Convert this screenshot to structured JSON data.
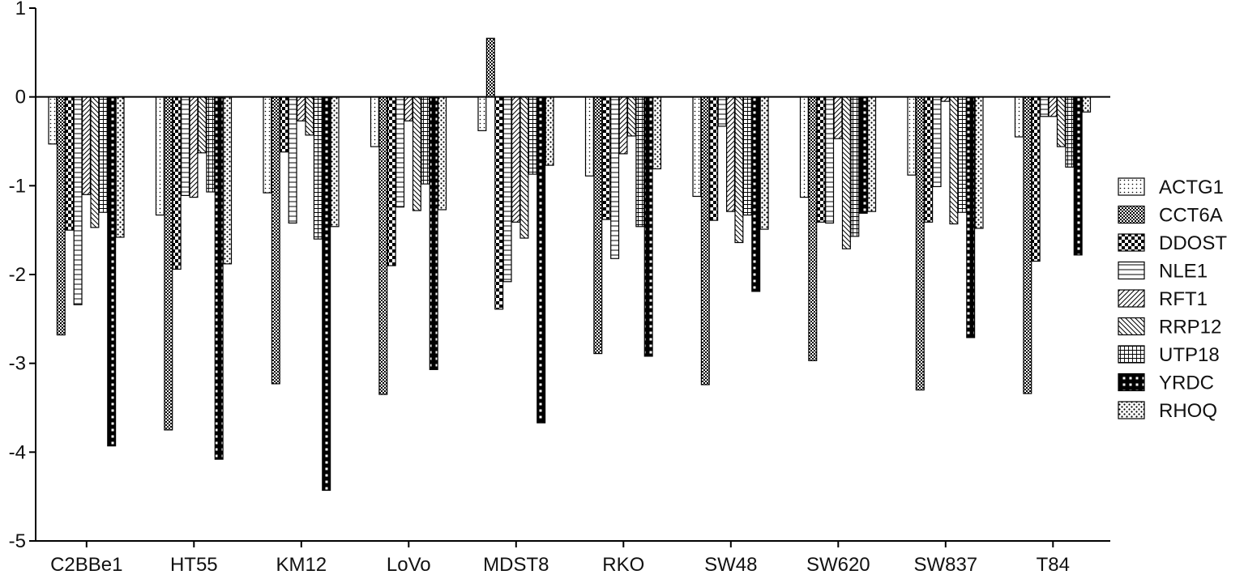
{
  "chart_data": {
    "type": "bar",
    "categories": [
      "C2BBe1",
      "HT55",
      "KM12",
      "LoVo",
      "MDST8",
      "RKO",
      "SW48",
      "SW620",
      "SW837",
      "T84"
    ],
    "series": [
      {
        "name": "ACTG1",
        "pattern": "dots-fine",
        "values": [
          -0.53,
          -1.33,
          -1.08,
          -0.56,
          -0.38,
          -0.89,
          -1.12,
          -1.13,
          -0.88,
          -0.45
        ]
      },
      {
        "name": "CCT6A",
        "pattern": "checker-small",
        "values": [
          -2.68,
          -3.75,
          -3.23,
          -3.35,
          0.66,
          -2.89,
          -3.24,
          -2.97,
          -3.3,
          -3.34
        ]
      },
      {
        "name": "DDOST",
        "pattern": "checker-large",
        "values": [
          -1.5,
          -1.94,
          -0.62,
          -1.9,
          -2.39,
          -1.38,
          -1.39,
          -1.41,
          -1.41,
          -1.85
        ]
      },
      {
        "name": "NLE1",
        "pattern": "horizontal",
        "values": [
          -2.34,
          -1.11,
          -1.42,
          -1.24,
          -2.08,
          -1.82,
          -0.33,
          -1.42,
          -1.01,
          -0.22
        ]
      },
      {
        "name": "RFT1",
        "pattern": "diag-up",
        "values": [
          -1.1,
          -1.13,
          -0.27,
          -0.27,
          -1.41,
          -0.64,
          -1.29,
          -0.47,
          -0.05,
          -0.22
        ]
      },
      {
        "name": "RRP12",
        "pattern": "diag-down",
        "values": [
          -1.47,
          -0.63,
          -0.43,
          -1.28,
          -1.59,
          -0.44,
          -1.64,
          -1.71,
          -1.43,
          -0.56
        ]
      },
      {
        "name": "UTP18",
        "pattern": "grid",
        "values": [
          -1.3,
          -1.07,
          -1.6,
          -0.98,
          -0.87,
          -1.46,
          -1.33,
          -1.57,
          -1.3,
          -0.79
        ]
      },
      {
        "name": "YRDC",
        "pattern": "dark-grid",
        "values": [
          -3.93,
          -4.08,
          -4.43,
          -3.07,
          -3.67,
          -2.92,
          -2.19,
          -1.31,
          -2.71,
          -1.78
        ]
      },
      {
        "name": "RHOQ",
        "pattern": "dots-coarse",
        "values": [
          -1.58,
          -1.88,
          -1.46,
          -1.27,
          -0.77,
          -0.81,
          -1.49,
          -1.29,
          -1.48,
          -0.17
        ]
      }
    ],
    "title": "",
    "xlabel": "",
    "ylabel": "",
    "ylim": [
      -5,
      1
    ],
    "yticks": [
      "1",
      "0",
      "-1",
      "-2",
      "-3",
      "-4",
      "-5"
    ],
    "legend_position": "right",
    "grid": false,
    "bar_color": "#000000",
    "background": "#ffffff"
  }
}
